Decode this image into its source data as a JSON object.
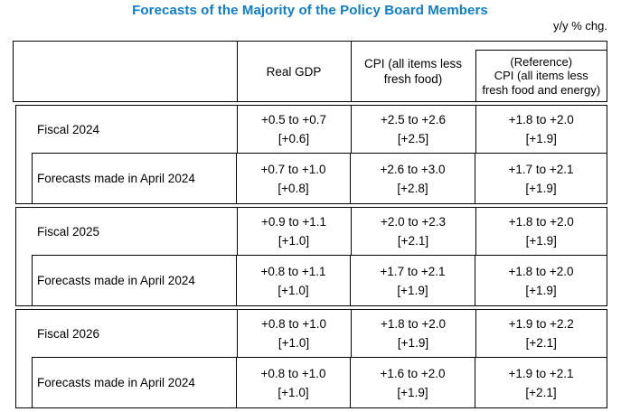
{
  "title": "Forecasts of the Majority of the Policy Board Members",
  "unit_note": "y/y % chg.",
  "colors": {
    "title_blue": "#0d7dd2",
    "border": "#000000",
    "text": "#000000",
    "background": "#ffffff"
  },
  "header": {
    "row_label": "",
    "real_gdp": "Real GDP",
    "cpi_lines": [
      "CPI (all items less",
      "fresh food)"
    ],
    "ref_lines": [
      "(Reference)",
      "CPI (all items less",
      "fresh food and energy)"
    ]
  },
  "blocks": [
    {
      "current": {
        "label": "Fiscal 2024",
        "gdp": {
          "range": "+0.5 to +0.7",
          "median": "[+0.6]"
        },
        "cpi": {
          "range": "+2.5 to +2.6",
          "median": "[+2.5]"
        },
        "ref": {
          "range": "+1.8 to +2.0",
          "median": "[+1.9]"
        }
      },
      "april": {
        "label": "Forecasts made in April 2024",
        "gdp": {
          "range": "+0.7 to +1.0",
          "median": "[+0.8]"
        },
        "cpi": {
          "range": "+2.6 to +3.0",
          "median": "[+2.8]"
        },
        "ref": {
          "range": "+1.7 to +2.1",
          "median": "[+1.9]"
        }
      }
    },
    {
      "current": {
        "label": "Fiscal 2025",
        "gdp": {
          "range": "+0.9 to +1.1",
          "median": "[+1.0]"
        },
        "cpi": {
          "range": "+2.0 to +2.3",
          "median": "[+2.1]"
        },
        "ref": {
          "range": "+1.8 to +2.0",
          "median": "[+1.9]"
        }
      },
      "april": {
        "label": "Forecasts made in April 2024",
        "gdp": {
          "range": "+0.8 to +1.1",
          "median": "[+1.0]"
        },
        "cpi": {
          "range": "+1.7 to +2.1",
          "median": "[+1.9]"
        },
        "ref": {
          "range": "+1.8 to +2.0",
          "median": "[+1.9]"
        }
      }
    },
    {
      "current": {
        "label": "Fiscal 2026",
        "gdp": {
          "range": "+0.8 to +1.0",
          "median": "[+1.0]"
        },
        "cpi": {
          "range": "+1.8 to +2.0",
          "median": "[+1.9]"
        },
        "ref": {
          "range": "+1.9 to +2.2",
          "median": "[+2.1]"
        }
      },
      "april": {
        "label": "Forecasts made in April 2024",
        "gdp": {
          "range": "+0.8 to +1.0",
          "median": "[+1.0]"
        },
        "cpi": {
          "range": "+1.6 to +2.0",
          "median": "[+1.9]"
        },
        "ref": {
          "range": "+1.9 to +2.1",
          "median": "[+2.1]"
        }
      }
    }
  ]
}
